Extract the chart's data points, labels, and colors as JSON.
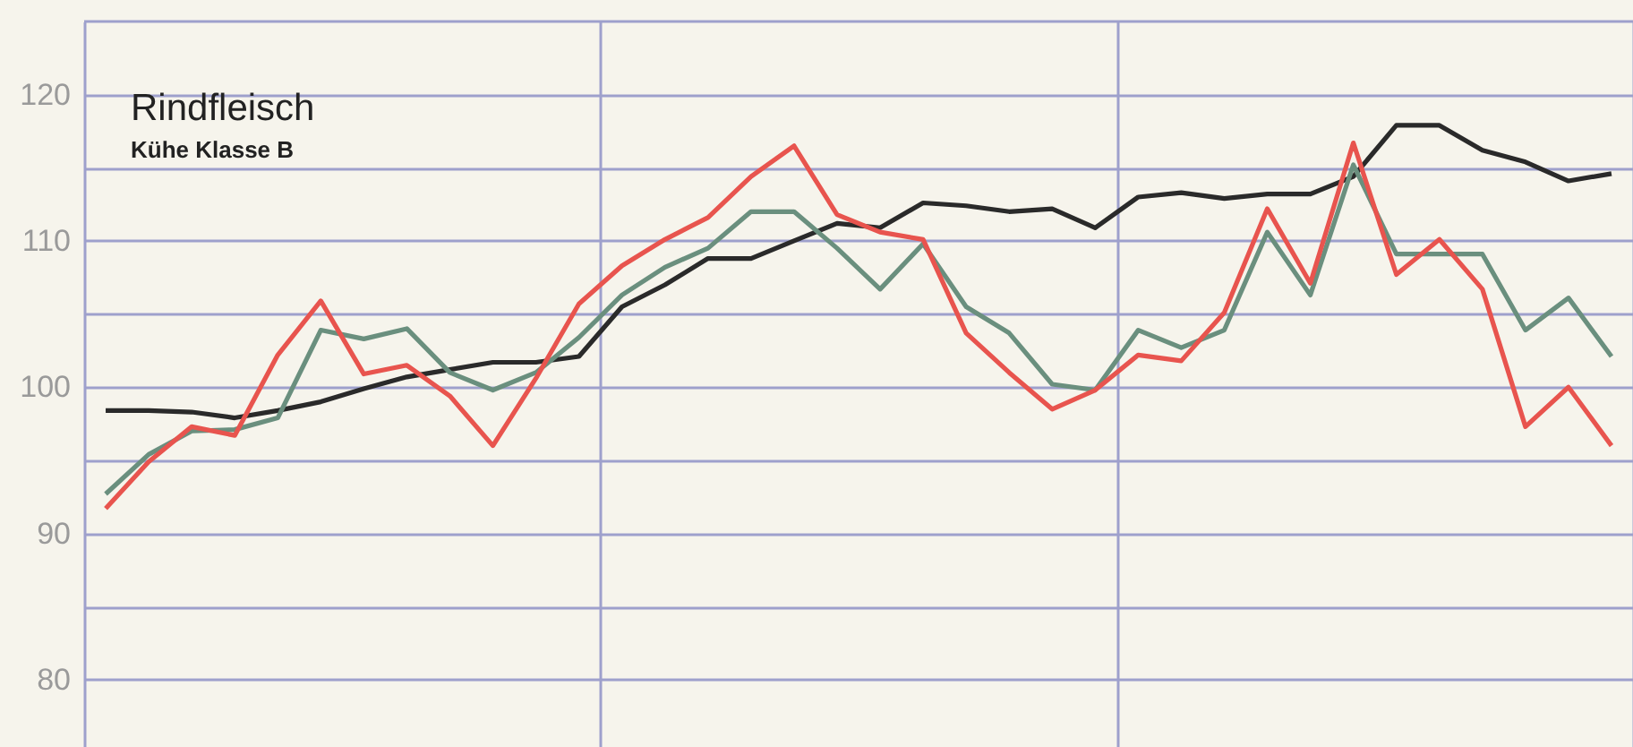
{
  "chart_data": {
    "type": "line",
    "title": "Rindfleisch",
    "subtitle": "Kühe Klasse B",
    "categories": [
      null,
      null,
      null,
      null,
      null,
      null,
      null,
      null,
      null,
      null,
      null,
      null,
      null,
      null,
      null,
      null,
      null,
      null,
      null,
      null,
      null,
      null,
      null,
      null,
      null,
      null,
      null,
      null,
      null,
      null,
      null,
      null,
      null,
      null,
      null,
      null
    ],
    "ylim": [
      75.4,
      125
    ],
    "yticks": [
      80,
      {
        "value": 85,
        "label": null
      },
      90,
      {
        "value": 95,
        "label": null
      },
      100,
      {
        "value": 105,
        "label": null
      },
      110,
      {
        "value": 115,
        "label": null
      },
      120
    ],
    "tick_labels": "y",
    "grid": true,
    "marker": "none",
    "line_style": "solid",
    "series": [
      {
        "color": "#2a2a2a",
        "values": [
          98.4,
          98.4,
          98.3,
          97.9,
          98.4,
          99.0,
          99.9,
          100.7,
          101.2,
          101.7,
          101.7,
          102.1,
          105.5,
          107.0,
          108.8,
          108.8,
          110.0,
          111.2,
          110.9,
          112.6,
          112.4,
          112.0,
          112.2,
          110.9,
          113.0,
          113.3,
          112.9,
          113.2,
          113.2,
          114.4,
          117.9,
          117.9,
          116.2,
          115.4,
          114.1,
          114.6
        ]
      },
      {
        "color": "#6a8f7e",
        "values": [
          92.7,
          95.4,
          97.0,
          97.1,
          97.9,
          103.9,
          103.3,
          104.0,
          101.0,
          99.8,
          101.0,
          103.4,
          106.3,
          108.2,
          109.5,
          112.0,
          112.0,
          109.5,
          106.7,
          109.8,
          105.5,
          103.7,
          100.2,
          99.8,
          103.9,
          102.7,
          103.9,
          110.6,
          106.3,
          115.2,
          109.1,
          109.1,
          109.1,
          103.9,
          106.1,
          102.1
        ]
      },
      {
        "color": "#e8544e",
        "values": [
          91.7,
          94.9,
          97.3,
          96.7,
          102.2,
          105.9,
          100.9,
          101.5,
          99.4,
          96.0,
          100.6,
          105.7,
          108.3,
          110.1,
          111.6,
          114.4,
          116.5,
          111.8,
          110.6,
          110.1,
          103.7,
          101.0,
          98.5,
          99.8,
          102.2,
          101.8,
          105.1,
          112.2,
          107.1,
          116.7,
          107.7,
          110.1,
          106.7,
          97.3,
          100.0,
          96.0
        ]
      }
    ]
  }
}
